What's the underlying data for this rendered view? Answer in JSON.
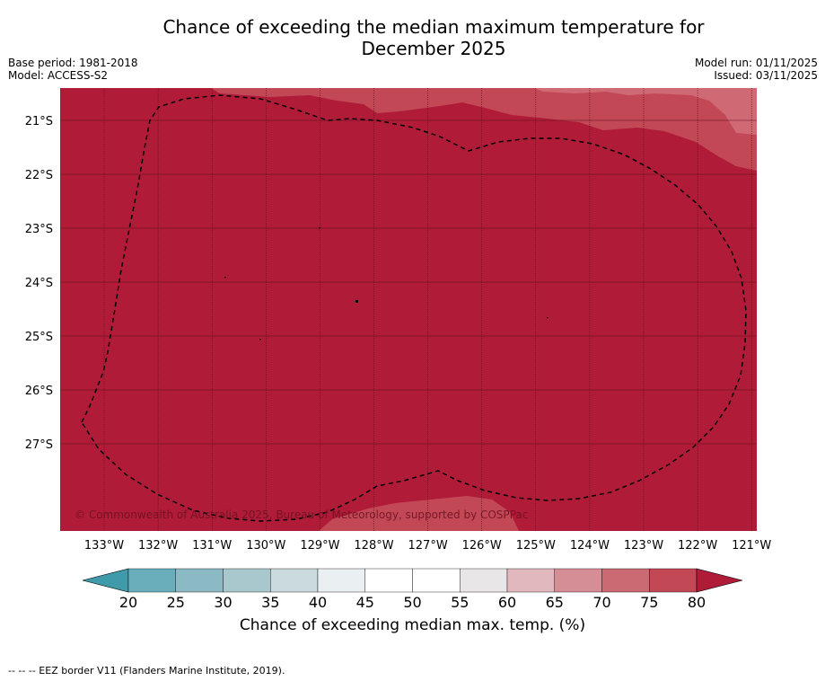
{
  "title": {
    "line1": "Chance of exceeding the median maximum temperature for",
    "line2": "December 2025"
  },
  "meta": {
    "base_period": "Base period: 1981-2018",
    "model": "Model: ACCESS-S2",
    "model_run": "Model run: 01/11/2025",
    "issued": "Issued: 03/11/2025"
  },
  "map": {
    "latitude_labels": [
      "21°S",
      "22°S",
      "23°S",
      "24°S",
      "25°S",
      "26°S",
      "27°S"
    ],
    "longitude_labels": [
      "133°W",
      "132°W",
      "131°W",
      "130°W",
      "129°W",
      "128°W",
      "127°W",
      "126°W",
      "125°W",
      "124°W",
      "123°W",
      "122°W",
      "121°W"
    ],
    "copyright": "© Commonwealth of Australia 2025, Bureau of Meteorology, supported by COSPPac",
    "colors": {
      "c80": "#b01c38",
      "c75": "#c24856",
      "c70": "#cf6a75",
      "grid": "#5a0a18",
      "eez": "#000000"
    }
  },
  "colorbar": {
    "ticks": [
      "20",
      "25",
      "30",
      "35",
      "40",
      "45",
      "50",
      "55",
      "60",
      "65",
      "70",
      "75",
      "80"
    ],
    "colors": [
      "#3f9aaa",
      "#6aaebb",
      "#8bbac4",
      "#a9c8cd",
      "#cbdadd",
      "#eaf0f1",
      "#ffffff",
      "#ffffff",
      "#e8e6e6",
      "#e0b8bd",
      "#d58e96",
      "#cc6a74",
      "#c24856",
      "#b01c38"
    ],
    "label": "Chance of exceeding median max. temp. (%)"
  },
  "footnote": "--  --  -- EEZ border V11 (Flanders Marine Institute, 2019)."
}
